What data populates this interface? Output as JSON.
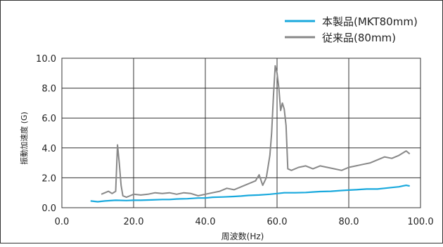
{
  "chart_data": {
    "type": "line",
    "xlabel": "周波数(Hz)",
    "ylabel": "振動加速度 (G)",
    "xlim": [
      0,
      100
    ],
    "ylim": [
      0,
      10
    ],
    "x_ticks": [
      "0.0",
      "20.0",
      "40.0",
      "60.0",
      "80.0",
      "100.0"
    ],
    "y_ticks": [
      "0.0",
      "2.0",
      "4.0",
      "6.0",
      "8.0",
      "10.0"
    ],
    "grid": true,
    "legend_position": "top-right",
    "series": [
      {
        "name": "本製品(MKT80mm)",
        "color": "#19a9dd",
        "x": [
          8,
          10,
          12,
          15,
          18,
          20,
          22,
          25,
          28,
          30,
          32,
          35,
          38,
          40,
          42,
          45,
          48,
          50,
          52,
          55,
          58,
          60,
          62,
          65,
          68,
          70,
          72,
          75,
          78,
          80,
          82,
          85,
          88,
          90,
          92,
          94,
          95,
          96,
          97
        ],
        "y": [
          0.45,
          0.4,
          0.45,
          0.5,
          0.48,
          0.5,
          0.5,
          0.52,
          0.55,
          0.55,
          0.58,
          0.6,
          0.65,
          0.65,
          0.7,
          0.72,
          0.75,
          0.78,
          0.82,
          0.85,
          0.9,
          0.95,
          1.0,
          1.0,
          1.02,
          1.05,
          1.08,
          1.1,
          1.15,
          1.18,
          1.2,
          1.25,
          1.25,
          1.3,
          1.35,
          1.4,
          1.45,
          1.5,
          1.45
        ]
      },
      {
        "name": "従来品(80mm)",
        "color": "#888888",
        "x": [
          11,
          12,
          13,
          14,
          15,
          15.5,
          16,
          16.5,
          17,
          18,
          19,
          20,
          22,
          24,
          26,
          28,
          30,
          32,
          34,
          36,
          38,
          40,
          42,
          44,
          46,
          48,
          50,
          52,
          54,
          55,
          56,
          57,
          58,
          58.5,
          59,
          59.5,
          60,
          60.5,
          61,
          61.5,
          62,
          62.5,
          63,
          64,
          66,
          68,
          70,
          72,
          74,
          76,
          78,
          80,
          82,
          84,
          86,
          88,
          90,
          92,
          94,
          96,
          97
        ],
        "y": [
          0.9,
          1.0,
          1.1,
          0.95,
          1.1,
          4.2,
          3.0,
          1.5,
          0.8,
          0.7,
          0.8,
          0.9,
          0.85,
          0.9,
          1.0,
          0.95,
          1.0,
          0.9,
          1.0,
          0.95,
          0.8,
          0.9,
          1.0,
          1.1,
          1.3,
          1.2,
          1.4,
          1.6,
          1.8,
          2.2,
          1.5,
          2.0,
          3.5,
          5.0,
          7.5,
          9.5,
          9.0,
          8.0,
          6.5,
          7.0,
          6.6,
          5.5,
          2.6,
          2.5,
          2.7,
          2.8,
          2.6,
          2.8,
          2.7,
          2.6,
          2.5,
          2.7,
          2.8,
          2.9,
          3.0,
          3.2,
          3.4,
          3.3,
          3.5,
          3.8,
          3.6
        ]
      }
    ]
  }
}
